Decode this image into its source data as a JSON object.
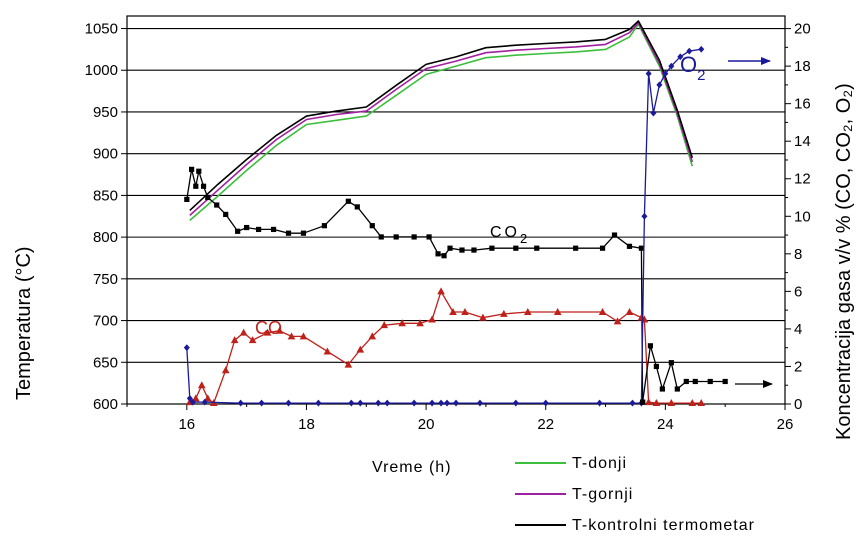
{
  "chart_data": {
    "type": "line",
    "xlabel": "Vreme (h)",
    "ylabel_left": "Temperatura (°C)",
    "ylabel_right": "Koncentracija gasa v/v % (CO, CO₂, O₂)",
    "xlim": [
      15,
      26
    ],
    "ylim_left": [
      600,
      1065
    ],
    "ylim_right": [
      0,
      20.67
    ],
    "x_ticks": [
      16,
      18,
      20,
      22,
      24,
      26
    ],
    "y_ticks_left": [
      600,
      650,
      700,
      750,
      800,
      850,
      900,
      950,
      1000,
      1050
    ],
    "y_ticks_right": [
      0,
      2,
      4,
      6,
      8,
      10,
      12,
      14,
      16,
      18,
      20
    ],
    "grid": "horizontal",
    "legend_position": "bottom-right",
    "colors": {
      "t_donji": "#3cbf3c",
      "t_gornji": "#a020a0",
      "t_kontrolni": "#000000",
      "co": "#c0201a",
      "co2": "#000000",
      "o2": "#1a1a9a"
    },
    "annotations": {
      "co": "CO",
      "co2_base": "CO",
      "co2_sub": "2",
      "o2_base": "O",
      "o2_sub": "2"
    },
    "legend": [
      {
        "key": "t_donji",
        "label": "T-donji"
      },
      {
        "key": "t_gornji",
        "label": "T-gornji"
      },
      {
        "key": "t_kontrolni",
        "label": "T-kontrolni termometar"
      }
    ],
    "series": [
      {
        "key": "t_donji",
        "axis": "left",
        "marker": "none",
        "points": [
          [
            16.05,
            820
          ],
          [
            16.5,
            848
          ],
          [
            17,
            880
          ],
          [
            17.5,
            910
          ],
          [
            18,
            935
          ],
          [
            18.5,
            940
          ],
          [
            19,
            945
          ],
          [
            19.5,
            970
          ],
          [
            20,
            995
          ],
          [
            20.5,
            1005
          ],
          [
            21,
            1015
          ],
          [
            21.5,
            1018
          ],
          [
            22,
            1020
          ],
          [
            22.5,
            1022
          ],
          [
            23,
            1025
          ],
          [
            23.4,
            1040
          ],
          [
            23.55,
            1055
          ],
          [
            23.9,
            1005
          ],
          [
            24.2,
            945
          ],
          [
            24.45,
            885
          ]
        ]
      },
      {
        "key": "t_gornji",
        "axis": "left",
        "marker": "none",
        "points": [
          [
            16.05,
            826
          ],
          [
            16.5,
            855
          ],
          [
            17,
            887
          ],
          [
            17.5,
            917
          ],
          [
            18,
            941
          ],
          [
            18.5,
            947
          ],
          [
            19,
            951
          ],
          [
            19.5,
            977
          ],
          [
            20,
            1002
          ],
          [
            20.5,
            1011
          ],
          [
            21,
            1021
          ],
          [
            21.5,
            1024
          ],
          [
            22,
            1026
          ],
          [
            22.5,
            1028
          ],
          [
            23,
            1031
          ],
          [
            23.4,
            1045
          ],
          [
            23.55,
            1057
          ],
          [
            23.9,
            1008
          ],
          [
            24.2,
            948
          ],
          [
            24.45,
            890
          ]
        ]
      },
      {
        "key": "t_kontrolni",
        "axis": "left",
        "marker": "none",
        "points": [
          [
            16.05,
            832
          ],
          [
            16.5,
            862
          ],
          [
            17,
            893
          ],
          [
            17.5,
            922
          ],
          [
            18,
            945
          ],
          [
            18.5,
            951
          ],
          [
            19,
            956
          ],
          [
            19.5,
            982
          ],
          [
            20,
            1007
          ],
          [
            20.5,
            1016
          ],
          [
            21,
            1027
          ],
          [
            21.5,
            1030
          ],
          [
            22,
            1032
          ],
          [
            22.5,
            1034
          ],
          [
            23,
            1037
          ],
          [
            23.4,
            1049
          ],
          [
            23.55,
            1059
          ],
          [
            23.9,
            1012
          ],
          [
            24.2,
            952
          ],
          [
            24.45,
            895
          ]
        ]
      },
      {
        "key": "co2",
        "axis": "right",
        "marker": "square",
        "points": [
          [
            16,
            10.9
          ],
          [
            16.08,
            12.5
          ],
          [
            16.15,
            11.6
          ],
          [
            16.2,
            12.4
          ],
          [
            16.28,
            11.6
          ],
          [
            16.35,
            11.0
          ],
          [
            16.5,
            10.6
          ],
          [
            16.65,
            10.1
          ],
          [
            16.85,
            9.2
          ],
          [
            17,
            9.4
          ],
          [
            17.2,
            9.3
          ],
          [
            17.45,
            9.3
          ],
          [
            17.7,
            9.1
          ],
          [
            17.95,
            9.1
          ],
          [
            18.3,
            9.5
          ],
          [
            18.7,
            10.8
          ],
          [
            18.85,
            10.5
          ],
          [
            19.1,
            9.5
          ],
          [
            19.25,
            8.9
          ],
          [
            19.5,
            8.9
          ],
          [
            19.8,
            8.9
          ],
          [
            20.05,
            8.9
          ],
          [
            20.2,
            8.0
          ],
          [
            20.3,
            7.9
          ],
          [
            20.4,
            8.3
          ],
          [
            20.6,
            8.2
          ],
          [
            20.8,
            8.2
          ],
          [
            21.1,
            8.3
          ],
          [
            21.5,
            8.3
          ],
          [
            21.85,
            8.3
          ],
          [
            22.5,
            8.3
          ],
          [
            22.95,
            8.3
          ],
          [
            23.15,
            9.0
          ],
          [
            23.4,
            8.4
          ],
          [
            23.6,
            8.3
          ],
          [
            23.62,
            0.1
          ]
        ]
      },
      {
        "key": "co",
        "axis": "right",
        "marker": "triangle",
        "points": [
          [
            16.05,
            0.1
          ],
          [
            16.15,
            0.3
          ],
          [
            16.25,
            1.0
          ],
          [
            16.35,
            0.3
          ],
          [
            16.45,
            0.05
          ],
          [
            16.65,
            1.8
          ],
          [
            16.8,
            3.4
          ],
          [
            16.95,
            3.8
          ],
          [
            17.1,
            3.4
          ],
          [
            17.35,
            3.8
          ],
          [
            17.55,
            3.9
          ],
          [
            17.75,
            3.6
          ],
          [
            17.95,
            3.6
          ],
          [
            18.35,
            2.8
          ],
          [
            18.7,
            2.1
          ],
          [
            18.9,
            2.9
          ],
          [
            19.1,
            3.6
          ],
          [
            19.3,
            4.2
          ],
          [
            19.6,
            4.3
          ],
          [
            19.9,
            4.3
          ],
          [
            20.1,
            4.5
          ],
          [
            20.25,
            6.0
          ],
          [
            20.45,
            4.9
          ],
          [
            20.65,
            4.9
          ],
          [
            20.95,
            4.6
          ],
          [
            21.3,
            4.8
          ],
          [
            21.7,
            4.9
          ],
          [
            22.2,
            4.9
          ],
          [
            22.95,
            4.9
          ],
          [
            23.2,
            4.4
          ],
          [
            23.4,
            4.9
          ],
          [
            23.6,
            4.6
          ],
          [
            23.65,
            4.5
          ],
          [
            23.72,
            0.1
          ],
          [
            23.85,
            0.05
          ],
          [
            24.1,
            0.05
          ],
          [
            24.45,
            0.05
          ],
          [
            24.6,
            0.05
          ]
        ]
      },
      {
        "key": "o2",
        "axis": "right",
        "marker": "diamond",
        "points": [
          [
            16,
            3.0
          ],
          [
            16.05,
            0.3
          ],
          [
            16.1,
            0.1
          ],
          [
            16.3,
            0.1
          ],
          [
            16.9,
            0.05
          ],
          [
            17.25,
            0.05
          ],
          [
            17.7,
            0.05
          ],
          [
            18.2,
            0.05
          ],
          [
            18.75,
            0.05
          ],
          [
            18.9,
            0.05
          ],
          [
            19.2,
            0.05
          ],
          [
            19.35,
            0.05
          ],
          [
            19.8,
            0.05
          ],
          [
            20.1,
            0.05
          ],
          [
            20.25,
            0.05
          ],
          [
            20.35,
            0.05
          ],
          [
            20.5,
            0.05
          ],
          [
            20.9,
            0.05
          ],
          [
            21.5,
            0.05
          ],
          [
            22.0,
            0.05
          ],
          [
            22.9,
            0.05
          ],
          [
            23.45,
            0.05
          ],
          [
            23.6,
            0.05
          ],
          [
            23.65,
            10
          ],
          [
            23.72,
            17.6
          ],
          [
            23.8,
            15.5
          ],
          [
            23.9,
            17.0
          ],
          [
            24.0,
            17.6
          ],
          [
            24.1,
            18.0
          ],
          [
            24.25,
            18.5
          ],
          [
            24.4,
            18.8
          ],
          [
            24.6,
            18.9
          ]
        ]
      },
      {
        "key": "co_low",
        "axis": "right",
        "marker": "square",
        "color_key": "co2",
        "points": [
          [
            23.62,
            0.1
          ],
          [
            23.75,
            3.1
          ],
          [
            23.85,
            2.0
          ],
          [
            23.95,
            0.8
          ],
          [
            24.1,
            2.2
          ],
          [
            24.2,
            0.8
          ],
          [
            24.35,
            1.2
          ],
          [
            24.5,
            1.2
          ],
          [
            24.75,
            1.2
          ],
          [
            25.0,
            1.2
          ]
        ]
      }
    ]
  }
}
